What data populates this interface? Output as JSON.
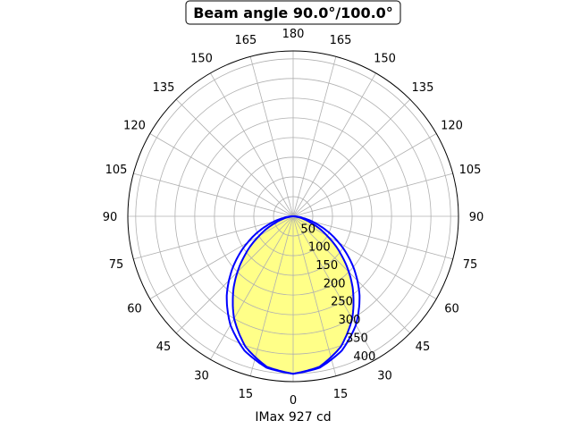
{
  "chart_data": {
    "type": "polar-line",
    "title": "Beam angle 90.0°/100.0°",
    "xlabel": "IMax 927 cd",
    "angle_zero": "bottom",
    "angle_tick_labels": [
      "0",
      "15",
      "30",
      "45",
      "60",
      "75",
      "90",
      "105",
      "120",
      "135",
      "150",
      "165",
      "180"
    ],
    "radial_ticks": [
      50,
      100,
      150,
      200,
      250,
      300,
      350,
      400
    ],
    "rlim": [
      0,
      420
    ],
    "grid": true,
    "angles_deg": [
      0,
      10,
      20,
      30,
      40,
      50,
      60,
      70,
      80,
      90
    ],
    "series": [
      {
        "values": [
          400,
          387.9,
          353.2,
          300,
          234.7,
          165.3,
          100,
          46.8,
          12.1,
          0
        ],
        "color": "#0000ff",
        "fill": "#ffff88"
      },
      {
        "values": [
          400,
          390.4,
          362.6,
          318.7,
          262.5,
          199,
          133.8,
          73.4,
          25.2,
          0
        ],
        "color": "#0000ff",
        "fill": null
      }
    ]
  }
}
